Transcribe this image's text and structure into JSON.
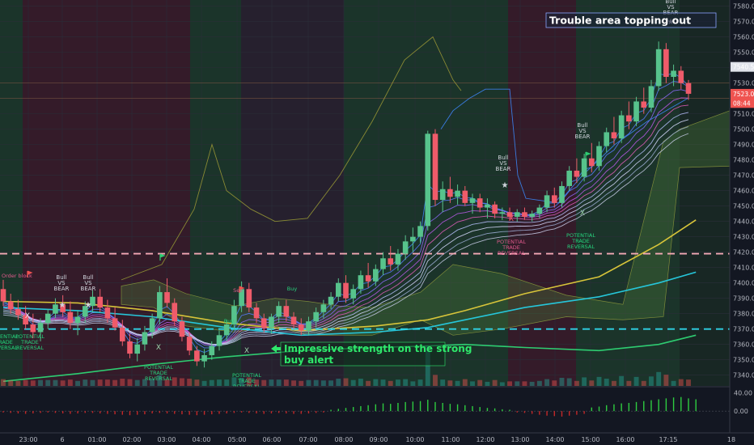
{
  "chart_data": {
    "type": "candlestick",
    "x_ticks": [
      "23:00",
      "6",
      "01:00",
      "02:00",
      "03:00",
      "04:00",
      "05:00",
      "06:00",
      "07:00",
      "08:00",
      "09:00",
      "10:00",
      "11:00",
      "12:00",
      "13:00",
      "14:00",
      "15:00",
      "16:00",
      "17:15",
      "18"
    ],
    "y_ticks": [
      7340,
      7350,
      7360,
      7370,
      7380,
      7390,
      7400,
      7410,
      7420,
      7430,
      7440,
      7450,
      7460,
      7470,
      7480,
      7490,
      7500,
      7510,
      7520,
      7530,
      7540,
      7550,
      7560,
      7570,
      7580
    ],
    "y_tick_labels": [
      "7340.00",
      "7350.00",
      "7360.00",
      "7370.00",
      "7380.00",
      "7390.00",
      "7400.00",
      "7410.00",
      "7420.00",
      "7430.00",
      "7440.00",
      "7450.00",
      "7460.00",
      "7470.00",
      "7480.00",
      "7490.00",
      "7500.00",
      "7510.00",
      "7520.00",
      "7530.00",
      "7540.00",
      "7550.00",
      "7560.00",
      "7570.00",
      "7580.00"
    ],
    "ylim": [
      7333,
      7584
    ],
    "price_badges": [
      {
        "value": 7540.5,
        "label": "7540.50",
        "color": "#e0e3eb",
        "text_color": "#131722"
      },
      {
        "value": 7523,
        "label": "7523.00",
        "color": "#ef5350",
        "text_color": "#ffffff"
      },
      {
        "value": 7517,
        "label": "08:44",
        "color": "#ef5350",
        "text_color": "#ffffff"
      }
    ],
    "horizontal_levels": [
      {
        "value": 7419,
        "color": "#f4a9b6",
        "style": "dashed"
      },
      {
        "value": 7370,
        "color": "#2fd3e6",
        "style": "dashed"
      }
    ],
    "oscillator_ticks": [
      {
        "value": 40,
        "label": "40.00"
      },
      {
        "value": 0,
        "label": "0.00"
      }
    ],
    "oscillator_ylim": [
      -30,
      50
    ],
    "candles": [
      [
        7396,
        7402,
        7385,
        7388
      ],
      [
        7388,
        7393,
        7380,
        7383
      ],
      [
        7383,
        7389,
        7376,
        7379
      ],
      [
        7379,
        7385,
        7370,
        7373
      ],
      [
        7373,
        7380,
        7364,
        7368
      ],
      [
        7368,
        7377,
        7362,
        7374
      ],
      [
        7374,
        7383,
        7370,
        7380
      ],
      [
        7380,
        7390,
        7377,
        7386
      ],
      [
        7386,
        7392,
        7378,
        7381
      ],
      [
        7381,
        7388,
        7370,
        7374
      ],
      [
        7374,
        7382,
        7366,
        7378
      ],
      [
        7378,
        7388,
        7374,
        7385
      ],
      [
        7385,
        7395,
        7381,
        7391
      ],
      [
        7391,
        7396,
        7381,
        7384
      ],
      [
        7384,
        7389,
        7374,
        7377
      ],
      [
        7377,
        7384,
        7369,
        7371
      ],
      [
        7371,
        7376,
        7359,
        7362
      ],
      [
        7362,
        7367,
        7351,
        7354
      ],
      [
        7354,
        7364,
        7349,
        7360
      ],
      [
        7360,
        7372,
        7356,
        7368
      ],
      [
        7368,
        7380,
        7364,
        7377
      ],
      [
        7377,
        7398,
        7373,
        7394
      ],
      [
        7394,
        7403,
        7384,
        7387
      ],
      [
        7387,
        7390,
        7372,
        7375
      ],
      [
        7375,
        7378,
        7362,
        7365
      ],
      [
        7365,
        7368,
        7353,
        7356
      ],
      [
        7356,
        7359,
        7346,
        7349
      ],
      [
        7349,
        7357,
        7345,
        7353
      ],
      [
        7353,
        7362,
        7350,
        7359
      ],
      [
        7359,
        7369,
        7356,
        7366
      ],
      [
        7366,
        7376,
        7362,
        7373
      ],
      [
        7373,
        7389,
        7369,
        7385
      ],
      [
        7385,
        7401,
        7381,
        7396
      ],
      [
        7396,
        7400,
        7381,
        7384
      ],
      [
        7384,
        7387,
        7374,
        7377
      ],
      [
        7377,
        7380,
        7368,
        7371
      ],
      [
        7371,
        7380,
        7367,
        7378
      ],
      [
        7378,
        7388,
        7374,
        7385
      ],
      [
        7385,
        7389,
        7375,
        7378
      ],
      [
        7378,
        7381,
        7370,
        7373
      ],
      [
        7373,
        7377,
        7366,
        7369
      ],
      [
        7369,
        7378,
        7366,
        7375
      ],
      [
        7375,
        7384,
        7371,
        7381
      ],
      [
        7381,
        7389,
        7377,
        7386
      ],
      [
        7386,
        7394,
        7383,
        7391
      ],
      [
        7391,
        7403,
        7388,
        7400
      ],
      [
        7400,
        7405,
        7387,
        7390
      ],
      [
        7390,
        7399,
        7386,
        7396
      ],
      [
        7396,
        7408,
        7393,
        7405
      ],
      [
        7405,
        7413,
        7397,
        7401
      ],
      [
        7401,
        7412,
        7398,
        7409
      ],
      [
        7409,
        7420,
        7405,
        7416
      ],
      [
        7416,
        7424,
        7408,
        7412
      ],
      [
        7412,
        7422,
        7408,
        7419
      ],
      [
        7419,
        7431,
        7415,
        7427
      ],
      [
        7427,
        7436,
        7420,
        7430
      ],
      [
        7430,
        7440,
        7426,
        7437
      ],
      [
        7437,
        7499,
        7434,
        7497
      ],
      [
        7497,
        7500,
        7450,
        7454
      ],
      [
        7454,
        7466,
        7446,
        7461
      ],
      [
        7461,
        7469,
        7452,
        7456
      ],
      [
        7456,
        7464,
        7451,
        7460
      ],
      [
        7460,
        7463,
        7450,
        7452
      ],
      [
        7452,
        7458,
        7445,
        7455
      ],
      [
        7455,
        7458,
        7446,
        7449
      ],
      [
        7449,
        7455,
        7442,
        7451
      ],
      [
        7451,
        7453,
        7442,
        7445
      ],
      [
        7445,
        7449,
        7441,
        7446
      ],
      [
        7446,
        7449,
        7441,
        7443
      ],
      [
        7443,
        7448,
        7440,
        7446
      ],
      [
        7446,
        7449,
        7441,
        7443
      ],
      [
        7443,
        7447,
        7440,
        7445
      ],
      [
        7445,
        7451,
        7442,
        7449
      ],
      [
        7449,
        7460,
        7446,
        7457
      ],
      [
        7457,
        7462,
        7449,
        7452
      ],
      [
        7452,
        7466,
        7449,
        7463
      ],
      [
        7463,
        7476,
        7460,
        7473
      ],
      [
        7473,
        7481,
        7465,
        7469
      ],
      [
        7469,
        7484,
        7466,
        7481
      ],
      [
        7481,
        7491,
        7472,
        7476
      ],
      [
        7476,
        7492,
        7473,
        7489
      ],
      [
        7489,
        7501,
        7485,
        7498
      ],
      [
        7498,
        7508,
        7490,
        7494
      ],
      [
        7494,
        7512,
        7491,
        7509
      ],
      [
        7509,
        7518,
        7500,
        7505
      ],
      [
        7505,
        7521,
        7502,
        7518
      ],
      [
        7518,
        7527,
        7510,
        7514
      ],
      [
        7514,
        7532,
        7511,
        7528
      ],
      [
        7528,
        7557,
        7525,
        7552
      ],
      [
        7552,
        7556,
        7530,
        7534
      ],
      [
        7534,
        7542,
        7528,
        7538
      ],
      [
        7538,
        7541,
        7526,
        7530
      ],
      [
        7530,
        7532,
        7519,
        7523
      ]
    ],
    "moving_averages": [
      {
        "name": "",
        "color": "#d7c43a",
        "points": [
          [
            0,
            7388
          ],
          [
            10,
            7387
          ],
          [
            20,
            7382
          ],
          [
            30,
            7374
          ],
          [
            40,
            7369
          ],
          [
            50,
            7372
          ],
          [
            57,
            7376
          ],
          [
            62,
            7382
          ],
          [
            70,
            7393
          ],
          [
            80,
            7404
          ],
          [
            88,
            7425
          ],
          [
            93,
            7441
          ]
        ]
      },
      {
        "name": "",
        "color": "#26c6da",
        "points": [
          [
            0,
            7384
          ],
          [
            10,
            7382
          ],
          [
            20,
            7378
          ],
          [
            30,
            7371
          ],
          [
            40,
            7366
          ],
          [
            50,
            7368
          ],
          [
            57,
            7371
          ],
          [
            62,
            7376
          ],
          [
            70,
            7384
          ],
          [
            80,
            7391
          ],
          [
            88,
            7400
          ],
          [
            93,
            7407
          ]
        ]
      },
      {
        "name": "",
        "color": "#2ecc71",
        "points": [
          [
            0,
            7336
          ],
          [
            10,
            7341
          ],
          [
            20,
            7347
          ],
          [
            30,
            7352
          ],
          [
            40,
            7356
          ],
          [
            50,
            7358
          ],
          [
            57,
            7359
          ],
          [
            62,
            7360
          ],
          [
            70,
            7358
          ],
          [
            80,
            7356
          ],
          [
            88,
            7360
          ],
          [
            93,
            7366
          ]
        ]
      }
    ],
    "oscillator": [
      -3,
      -4,
      -5,
      -6,
      -5,
      -4,
      -3,
      -4,
      -5,
      -6,
      -5,
      -4,
      -4,
      -5,
      -6,
      -7,
      -8,
      -9,
      -8,
      -7,
      -5,
      -4,
      -5,
      -6,
      -7,
      -8,
      -9,
      -8,
      -7,
      -6,
      -5,
      -4,
      -3,
      -4,
      -5,
      -6,
      -5,
      -4,
      -5,
      -6,
      -6,
      -5,
      -4,
      -3,
      3,
      5,
      7,
      9,
      11,
      13,
      15,
      17,
      16,
      18,
      20,
      21,
      22,
      25,
      20,
      18,
      16,
      15,
      13,
      11,
      9,
      7,
      6,
      4,
      3,
      -3,
      -4,
      -6,
      -8,
      -10,
      -11,
      -12,
      -10,
      -8,
      -6,
      8,
      10,
      13,
      15,
      17,
      18,
      20,
      22,
      24,
      26,
      28,
      30,
      31,
      28,
      26
    ]
  },
  "annotations": {
    "topping_out": "Trouble area topping out",
    "strength": [
      "Impressive strength on the strong",
      "buy alert"
    ],
    "bull_vs_bear": [
      "Bull",
      "VS",
      "BEAR"
    ],
    "potential_trade_reversal": [
      "POTENTIAL",
      "TRADE",
      "REVERSAL"
    ],
    "buy_label": "Buy",
    "sell_label": "Sell",
    "x_marker": "X",
    "order_block": "Order block"
  }
}
